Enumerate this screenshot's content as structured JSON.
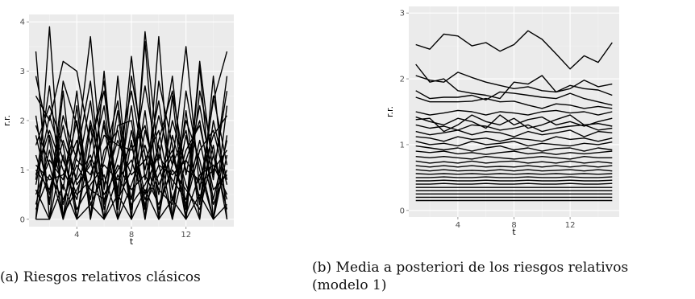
{
  "figures": [
    {
      "caption": "(a) Riesgos relativos clásicos",
      "chart_data": {
        "type": "line",
        "title": "",
        "xlabel": "t",
        "ylabel": "r.r.",
        "xlim": [
          0.5,
          15.5
        ],
        "ylim": [
          -0.15,
          4.15
        ],
        "x_ticks": [
          4,
          8,
          12
        ],
        "y_ticks": [
          0,
          1,
          2,
          3,
          4
        ],
        "grid": true,
        "background": "#ebebeb",
        "line_color": "#000000",
        "x": [
          1,
          2,
          3,
          4,
          5,
          6,
          7,
          8,
          9,
          10,
          11,
          12,
          13,
          14,
          15
        ],
        "series": [
          {
            "values": [
              3.4,
              0,
              2.6,
              0,
              1.9,
              0,
              2.9,
              0,
              3.6,
              0,
              2.5,
              0,
              3.1,
              0,
              1.7
            ]
          },
          {
            "values": [
              0,
              3.9,
              0,
              2.3,
              0,
              3.0,
              0,
              1.6,
              0,
              3.7,
              0,
              2.2,
              0,
              2.9,
              0
            ]
          },
          {
            "values": [
              2.5,
              2.0,
              3.2,
              3.0,
              1.5,
              2.6,
              0.5,
              3.3,
              0.8,
              2.1,
              1.1,
              3.5,
              0.6,
              2.4,
              3.4
            ]
          },
          {
            "values": [
              0.8,
              2.7,
              0.3,
              1.4,
              3.7,
              0.6,
              2.2,
              0,
              3.8,
              1.2,
              2.9,
              0.2,
              3.2,
              0.9,
              2.6
            ]
          },
          {
            "values": [
              1.3,
              0.4,
              1.9,
              0.7,
              1.1,
              2.3,
              0.3,
              1.8,
              0.5,
              1.5,
              0,
              1.2,
              2.0,
              0.4,
              1.6
            ]
          },
          {
            "values": [
              0,
              1.7,
              0.6,
              2.6,
              0,
              1.4,
              1.8,
              0.4,
              2.2,
              0,
              1.7,
              0.7,
              0,
              2.0,
              0.8
            ]
          },
          {
            "values": [
              1.9,
              1.1,
              0,
              0.9,
              2.4,
              0.2,
              1.3,
              2.6,
              1.0,
              2.4,
              0.6,
              2.0,
              1.2,
              0,
              1.3
            ]
          },
          {
            "values": [
              0.6,
              0,
              1.3,
              0.2,
              0.7,
              1.1,
              0.8,
              1.2,
              0.3,
              0.9,
              1.4,
              0.1,
              0.9,
              1.1,
              0.5
            ]
          },
          {
            "values": [
              1.1,
              0.8,
              0.9,
              1.6,
              0.3,
              0.9,
              0,
              0.7,
              1.5,
              0.6,
              0.3,
              1.7,
              0.4,
              1.5,
              0
            ]
          },
          {
            "values": [
              0.3,
              1.4,
              0.1,
              0.6,
              1.2,
              0,
              0.9,
              0.3,
              0.7,
              1.3,
              0.8,
              0.4,
              1.6,
              0.3,
              1.0
            ]
          },
          {
            "values": [
              1.7,
              0.5,
              2.1,
              1.2,
              0.9,
              1.7,
              1.5,
              1.4,
              1.9,
              0.5,
              2.0,
              1.0,
              0.8,
              1.7,
              2.1
            ]
          },
          {
            "values": [
              0.9,
              1.8,
              1.0,
              0.4,
              2.0,
              0.7,
              1.6,
              0.9,
              1.2,
              1.8,
              0.4,
              1.4,
              1.9,
              0.6,
              0.9
            ]
          },
          {
            "values": [
              2.1,
              0.3,
              2.8,
              1.9,
              0.4,
              2.0,
              0.6,
              2.3,
              0,
              1.6,
              2.6,
              0.9,
              2.3,
              0.8,
              2.9
            ]
          },
          {
            "values": [
              0.2,
              0.9,
              0.4,
              1.1,
              0.6,
              0.4,
              1.1,
              0.6,
              0.9,
              0.3,
              1.0,
              0.6,
              0.2,
              1.3,
              0.4
            ]
          },
          {
            "values": [
              1.5,
              2.3,
              1.5,
              0,
              1.5,
              2.8,
              0.4,
              1.0,
              2.7,
              1.1,
              0,
              2.6,
              1.0,
              0,
              2.3
            ]
          },
          {
            "values": [
              0.5,
              1.2,
              0.8,
              2.0,
              0.1,
              1.2,
              2.4,
              0.2,
              1.8,
              0.7,
              1.3,
              0.3,
              1.4,
              1.8,
              0.7
            ]
          },
          {
            "values": [
              1.0,
              0.6,
              1.6,
              0.8,
              1.3,
              0.5,
              1.0,
              1.5,
              0.4,
              1.1,
              0.9,
              1.2,
              0.7,
              1.0,
              1.4
            ]
          },
          {
            "values": [
              0,
              0,
              0.7,
              0,
              0.3,
              0,
              0.5,
              0,
              0.6,
              0,
              0.4,
              0,
              0.5,
              0,
              0.3
            ]
          },
          {
            "values": [
              2.9,
              1.6,
              0,
              1.3,
              2.8,
              0.3,
              1.9,
              2.0,
              0.2,
              2.8,
              1.5,
              0,
              2.6,
              1.3,
              0.2
            ]
          },
          {
            "values": [
              0.7,
              2.1,
              1.2,
              0.5,
              0.8,
              1.9,
              0.2,
              2.9,
              1.3,
              0.2,
              1.1,
              1.8,
              0.3,
              2.5,
              1.1
            ]
          }
        ]
      }
    },
    {
      "caption": "(b) Media a posteriori de los riesgos relativos (modelo 1)",
      "caption_lines": [
        "(b) Media a posteriori de los riesgos relativos",
        "(modelo 1)"
      ],
      "chart_data": {
        "type": "line",
        "title": "",
        "xlabel": "t",
        "ylabel": "r.r.",
        "xlim": [
          0.5,
          15.5
        ],
        "ylim": [
          -0.1,
          3.1
        ],
        "x_ticks": [
          4,
          8,
          12
        ],
        "y_ticks": [
          0,
          1,
          2,
          3
        ],
        "grid": true,
        "background": "#ebebeb",
        "line_color": "#000000",
        "x": [
          1,
          2,
          3,
          4,
          5,
          6,
          7,
          8,
          9,
          10,
          11,
          12,
          13,
          14,
          15
        ],
        "series": [
          {
            "values": [
              2.52,
              2.45,
              2.68,
              2.65,
              2.5,
              2.55,
              2.42,
              2.52,
              2.73,
              2.6,
              2.38,
              2.15,
              2.35,
              2.25,
              2.55
            ]
          },
          {
            "values": [
              2.22,
              1.95,
              2.0,
              1.82,
              1.78,
              1.75,
              1.7,
              1.95,
              1.92,
              2.05,
              1.8,
              1.85,
              1.98,
              1.88,
              1.92
            ]
          },
          {
            "values": [
              2.05,
              1.98,
              1.95,
              2.1,
              2.02,
              1.95,
              1.9,
              1.85,
              1.88,
              1.82,
              1.8,
              1.9,
              1.85,
              1.83,
              1.75
            ]
          },
          {
            "values": [
              1.82,
              1.7,
              1.72,
              1.72,
              1.75,
              1.68,
              1.8,
              1.78,
              1.75,
              1.72,
              1.7,
              1.78,
              1.7,
              1.65,
              1.6
            ]
          },
          {
            "values": [
              1.72,
              1.65,
              1.65,
              1.65,
              1.66,
              1.7,
              1.65,
              1.66,
              1.6,
              1.55,
              1.62,
              1.6,
              1.55,
              1.58,
              1.55
            ]
          },
          {
            "values": [
              1.5,
              1.45,
              1.48,
              1.52,
              1.5,
              1.45,
              1.5,
              1.48,
              1.45,
              1.5,
              1.52,
              1.48,
              1.5,
              1.45,
              1.5
            ]
          },
          {
            "values": [
              1.42,
              1.35,
              1.3,
              1.4,
              1.35,
              1.25,
              1.45,
              1.3,
              1.38,
              1.42,
              1.3,
              1.35,
              1.28,
              1.35,
              1.4
            ]
          },
          {
            "values": [
              1.38,
              1.4,
              1.2,
              1.3,
              1.45,
              1.35,
              1.3,
              1.4,
              1.25,
              1.3,
              1.38,
              1.45,
              1.3,
              1.32,
              1.28
            ]
          },
          {
            "values": [
              1.3,
              1.25,
              1.28,
              1.22,
              1.3,
              1.28,
              1.22,
              1.25,
              1.3,
              1.2,
              1.25,
              1.28,
              1.3,
              1.22,
              1.25
            ]
          },
          {
            "values": [
              1.2,
              1.15,
              1.18,
              1.22,
              1.15,
              1.2,
              1.18,
              1.12,
              1.2,
              1.15,
              1.18,
              1.22,
              1.12,
              1.2,
              1.18
            ]
          },
          {
            "values": [
              1.12,
              1.1,
              1.05,
              1.12,
              1.08,
              1.1,
              1.05,
              1.1,
              1.08,
              1.05,
              1.12,
              1.08,
              1.1,
              1.05,
              1.1
            ]
          },
          {
            "values": [
              1.05,
              1.0,
              1.02,
              0.98,
              1.05,
              1.0,
              1.02,
              1.05,
              0.98,
              1.02,
              1.0,
              0.98,
              1.02,
              1.0,
              1.04
            ]
          },
          {
            "values": [
              0.98,
              0.95,
              0.92,
              0.95,
              0.9,
              0.95,
              0.98,
              0.92,
              0.95,
              0.9,
              0.94,
              0.95,
              0.9,
              0.95,
              0.92
            ]
          },
          {
            "values": [
              0.9,
              0.88,
              0.9,
              0.86,
              0.88,
              0.85,
              0.88,
              0.9,
              0.86,
              0.88,
              0.85,
              0.88,
              0.86,
              0.88,
              0.9
            ]
          },
          {
            "values": [
              0.82,
              0.8,
              0.82,
              0.8,
              0.78,
              0.82,
              0.8,
              0.78,
              0.8,
              0.82,
              0.8,
              0.78,
              0.82,
              0.8,
              0.8
            ]
          },
          {
            "values": [
              0.75,
              0.72,
              0.74,
              0.72,
              0.75,
              0.72,
              0.74,
              0.75,
              0.72,
              0.74,
              0.72,
              0.75,
              0.72,
              0.74,
              0.72
            ]
          },
          {
            "values": [
              0.68,
              0.66,
              0.68,
              0.66,
              0.68,
              0.66,
              0.67,
              0.66,
              0.68,
              0.66,
              0.68,
              0.66,
              0.68,
              0.66,
              0.68
            ]
          },
          {
            "values": [
              0.62,
              0.6,
              0.62,
              0.6,
              0.61,
              0.6,
              0.62,
              0.6,
              0.62,
              0.6,
              0.61,
              0.62,
              0.6,
              0.62,
              0.6
            ]
          },
          {
            "values": [
              0.56,
              0.55,
              0.56,
              0.55,
              0.56,
              0.55,
              0.56,
              0.55,
              0.56,
              0.55,
              0.56,
              0.55,
              0.56,
              0.55,
              0.56
            ]
          },
          {
            "values": [
              0.5,
              0.5,
              0.51,
              0.5,
              0.5,
              0.51,
              0.5,
              0.5,
              0.51,
              0.5,
              0.5,
              0.51,
              0.5,
              0.5,
              0.51
            ]
          },
          {
            "values": [
              0.45,
              0.45,
              0.46,
              0.45,
              0.45,
              0.46,
              0.45,
              0.45,
              0.46,
              0.45,
              0.45,
              0.46,
              0.45,
              0.45,
              0.46
            ]
          },
          {
            "values": [
              0.4,
              0.4,
              0.41,
              0.4,
              0.4,
              0.41,
              0.4,
              0.4,
              0.41,
              0.4,
              0.4,
              0.41,
              0.4,
              0.4,
              0.41
            ]
          },
          {
            "values": [
              0.35,
              0.35,
              0.35,
              0.35,
              0.35,
              0.35,
              0.35,
              0.35,
              0.35,
              0.35,
              0.35,
              0.35,
              0.35,
              0.35,
              0.35
            ]
          },
          {
            "values": [
              0.3,
              0.3,
              0.3,
              0.3,
              0.3,
              0.3,
              0.3,
              0.3,
              0.3,
              0.3,
              0.3,
              0.3,
              0.3,
              0.3,
              0.3
            ]
          },
          {
            "values": [
              0.25,
              0.25,
              0.25,
              0.25,
              0.25,
              0.25,
              0.25,
              0.25,
              0.25,
              0.25,
              0.25,
              0.25,
              0.25,
              0.25,
              0.25
            ]
          },
          {
            "values": [
              0.2,
              0.2,
              0.2,
              0.2,
              0.2,
              0.2,
              0.2,
              0.2,
              0.2,
              0.2,
              0.2,
              0.2,
              0.2,
              0.2,
              0.2
            ]
          },
          {
            "values": [
              0.15,
              0.15,
              0.15,
              0.15,
              0.15,
              0.15,
              0.15,
              0.15,
              0.15,
              0.15,
              0.15,
              0.15,
              0.15,
              0.15,
              0.15
            ]
          }
        ]
      }
    }
  ]
}
